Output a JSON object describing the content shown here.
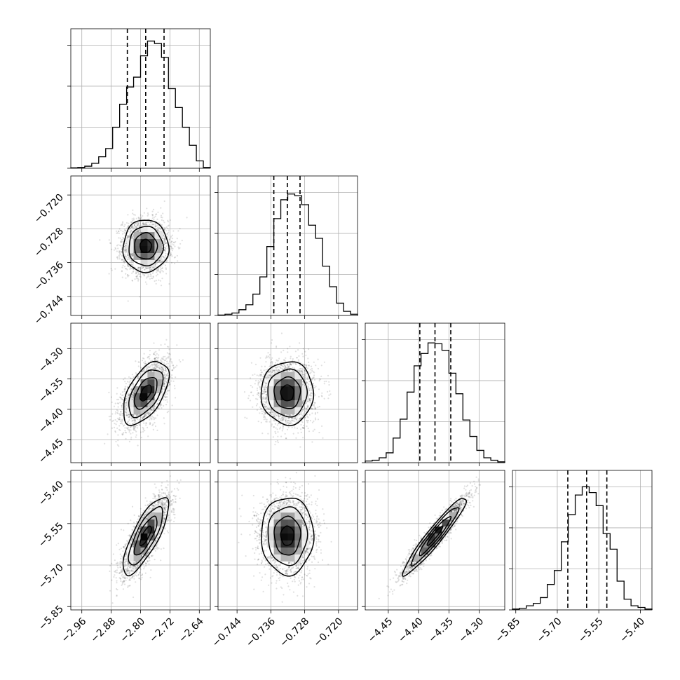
{
  "chart_data": {
    "type": "corner",
    "grid": true,
    "colors": {
      "lines": "#000000",
      "grid": "#b0b0b0",
      "points": "#808080",
      "background": "#ffffff"
    },
    "parameters": [
      {
        "index": 0,
        "range": [
          -2.99,
          -2.61
        ],
        "ticks": [
          -2.96,
          -2.88,
          -2.8,
          -2.72,
          -2.64
        ],
        "tick_labels": [
          "−2.96",
          "−2.88",
          "−2.80",
          "−2.72",
          "−2.64"
        ],
        "hist_grid": [
          0,
          0.5,
          1.0,
          1.5
        ],
        "quantiles": [
          -2.836,
          -2.786,
          -2.736
        ]
      },
      {
        "index": 1,
        "range": [
          -0.7485,
          -0.7155
        ],
        "ticks": [
          -0.744,
          -0.736,
          -0.728,
          -0.72
        ],
        "tick_labels": [
          "−0.744",
          "−0.736",
          "−0.728",
          "−0.720"
        ],
        "hist_grid": [
          0,
          0.5,
          1.0,
          1.5
        ],
        "quantiles": [
          -0.7353,
          -0.7321,
          -0.7291
        ]
      },
      {
        "index": 2,
        "range": [
          -4.488,
          -4.258
        ],
        "ticks": [
          -4.45,
          -4.4,
          -4.35,
          -4.3
        ],
        "tick_labels": [
          "−4.45",
          "−4.40",
          "−4.35",
          "−4.30"
        ],
        "hist_grid": [
          0,
          0.5,
          1.0,
          1.5
        ],
        "quantiles": [
          -4.398,
          -4.373,
          -4.347
        ]
      },
      {
        "index": 3,
        "range": [
          -5.862,
          -5.358
        ],
        "ticks": [
          -5.85,
          -5.7,
          -5.55,
          -5.4
        ],
        "tick_labels": [
          "−5.85",
          "−5.70",
          "−5.55",
          "−5.40"
        ],
        "hist_grid": [
          0,
          0.5,
          1.0,
          1.5
        ],
        "quantiles": [
          -5.662,
          -5.594,
          -5.521
        ]
      }
    ],
    "histograms": [
      {
        "param": 0,
        "bins": 20,
        "counts": [
          0.005,
          0.01,
          0.025,
          0.06,
          0.14,
          0.24,
          0.5,
          0.78,
          0.99,
          1.11,
          1.37,
          1.55,
          1.52,
          1.35,
          0.97,
          0.74,
          0.5,
          0.28,
          0.09,
          0.01
        ]
      },
      {
        "param": 1,
        "bins": 20,
        "counts": [
          0.005,
          0.015,
          0.03,
          0.07,
          0.13,
          0.26,
          0.47,
          0.84,
          1.18,
          1.41,
          1.48,
          1.46,
          1.35,
          1.1,
          0.94,
          0.6,
          0.35,
          0.15,
          0.05,
          0.015
        ]
      },
      {
        "param": 2,
        "bins": 20,
        "counts": [
          0.02,
          0.03,
          0.06,
          0.12,
          0.3,
          0.53,
          0.86,
          1.18,
          1.33,
          1.46,
          1.45,
          1.37,
          1.09,
          0.84,
          0.52,
          0.32,
          0.15,
          0.06,
          0.03,
          0.01
        ]
      },
      {
        "param": 3,
        "bins": 20,
        "counts": [
          0.01,
          0.02,
          0.05,
          0.08,
          0.15,
          0.31,
          0.48,
          0.83,
          1.16,
          1.4,
          1.5,
          1.43,
          1.27,
          0.93,
          0.74,
          0.35,
          0.13,
          0.05,
          0.03,
          0.01
        ]
      }
    ],
    "joint": [
      {
        "x": 0,
        "y": 1,
        "mean": [
          -2.786,
          -0.7321
        ],
        "sigma": [
          0.031,
          0.0031
        ],
        "rho": 0.0
      },
      {
        "x": 0,
        "y": 2,
        "mean": [
          -2.786,
          -4.373
        ],
        "sigma": [
          0.031,
          0.026
        ],
        "rho": 0.55
      },
      {
        "x": 1,
        "y": 2,
        "mean": [
          -0.7321,
          -4.373
        ],
        "sigma": [
          0.0031,
          0.026
        ],
        "rho": 0.0
      },
      {
        "x": 0,
        "y": 3,
        "mean": [
          -2.786,
          -5.594
        ],
        "sigma": [
          0.031,
          0.07
        ],
        "rho": 0.78
      },
      {
        "x": 1,
        "y": 3,
        "mean": [
          -0.7321,
          -5.594
        ],
        "sigma": [
          0.0031,
          0.07
        ],
        "rho": 0.0
      },
      {
        "x": 2,
        "y": 3,
        "mean": [
          -4.373,
          -5.594
        ],
        "sigma": [
          0.026,
          0.07
        ],
        "rho": 0.95
      }
    ],
    "contour_levels_sigma": [
      0.5,
      1.0,
      1.5,
      2.0
    ]
  }
}
